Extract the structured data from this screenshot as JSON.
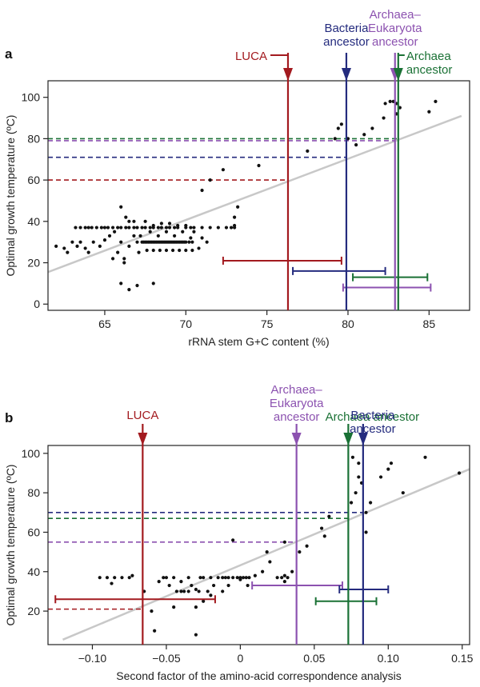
{
  "chart_data": [
    {
      "panel": "a",
      "type": "scatter",
      "xlabel": "rRNA stem G+C content (%)",
      "ylabel": "Optimal growth temperature (ºC)",
      "xlim": [
        61.5,
        87.5
      ],
      "ylim": [
        -3,
        108
      ],
      "xticks": [
        65,
        70,
        75,
        80,
        85
      ],
      "yticks": [
        0,
        20,
        40,
        60,
        80,
        100
      ],
      "regression": {
        "x1": 61.5,
        "y1": 15.5,
        "x2": 87.0,
        "y2": 91.0
      },
      "ancestors": [
        {
          "label": "LUCA",
          "color": "#a31a1f",
          "x": 76.3,
          "temp": 60,
          "ci": [
            72.3,
            79.6
          ],
          "ci_y": 21,
          "label_above": false
        },
        {
          "label": "Bacteria\nancestor",
          "color": "#242b7e",
          "x": 79.9,
          "temp": 71,
          "ci": [
            76.6,
            82.3
          ],
          "ci_y": 16,
          "label_above": true
        },
        {
          "label": "Archaea–\nEukaryota\nancestor",
          "color": "#8c52b0",
          "x": 82.9,
          "temp": 79,
          "ci": [
            79.7,
            85.1
          ],
          "ci_y": 8,
          "label_above": true
        },
        {
          "label": "Archaea\nancestor",
          "color": "#1a7135",
          "x": 83.1,
          "temp": 80,
          "ci": [
            80.3,
            84.9
          ],
          "ci_y": 13,
          "label_above": false
        }
      ],
      "points": [
        [
          62,
          28
        ],
        [
          62.5,
          27
        ],
        [
          62.7,
          25
        ],
        [
          63,
          30
        ],
        [
          63.2,
          37
        ],
        [
          63.5,
          37
        ],
        [
          63.8,
          37
        ],
        [
          64,
          37
        ],
        [
          64.2,
          37
        ],
        [
          64.5,
          37
        ],
        [
          64.8,
          37
        ],
        [
          65,
          37
        ],
        [
          65.2,
          37
        ],
        [
          65.5,
          37
        ],
        [
          65.8,
          37
        ],
        [
          66,
          37
        ],
        [
          66.3,
          37
        ],
        [
          66.5,
          37
        ],
        [
          66.8,
          37
        ],
        [
          67,
          37
        ],
        [
          67.3,
          37
        ],
        [
          67.5,
          37
        ],
        [
          67.8,
          37
        ],
        [
          68,
          37
        ],
        [
          68.3,
          37
        ],
        [
          68.5,
          37
        ],
        [
          68.8,
          37
        ],
        [
          69,
          37
        ],
        [
          69.3,
          37
        ],
        [
          69.5,
          37
        ],
        [
          70,
          37
        ],
        [
          70.3,
          37
        ],
        [
          70.5,
          37
        ],
        [
          71,
          37
        ],
        [
          71.5,
          37
        ],
        [
          72,
          37
        ],
        [
          72.5,
          37
        ],
        [
          73,
          37
        ],
        [
          63.3,
          28
        ],
        [
          63.5,
          30
        ],
        [
          63.8,
          27
        ],
        [
          64,
          25
        ],
        [
          64.3,
          30
        ],
        [
          64.7,
          28
        ],
        [
          65,
          31
        ],
        [
          65.3,
          33
        ],
        [
          65.6,
          35
        ],
        [
          65.8,
          25
        ],
        [
          66,
          30
        ],
        [
          66.2,
          22
        ],
        [
          66.5,
          28
        ],
        [
          66.8,
          33
        ],
        [
          67,
          30
        ],
        [
          67.1,
          25
        ],
        [
          67.2,
          33
        ],
        [
          67.3,
          30
        ],
        [
          67.4,
          30
        ],
        [
          67.5,
          30
        ],
        [
          67.6,
          30
        ],
        [
          67.7,
          30
        ],
        [
          67.8,
          30
        ],
        [
          67.9,
          30
        ],
        [
          68,
          30
        ],
        [
          68.1,
          30
        ],
        [
          68.2,
          30
        ],
        [
          68.3,
          30
        ],
        [
          68.4,
          30
        ],
        [
          68.5,
          30
        ],
        [
          68.6,
          30
        ],
        [
          68.7,
          30
        ],
        [
          68.8,
          30
        ],
        [
          68.9,
          30
        ],
        [
          69,
          30
        ],
        [
          69.1,
          30
        ],
        [
          69.2,
          30
        ],
        [
          69.3,
          30
        ],
        [
          69.4,
          30
        ],
        [
          69.5,
          30
        ],
        [
          69.6,
          30
        ],
        [
          69.7,
          30
        ],
        [
          69.8,
          30
        ],
        [
          69.9,
          30
        ],
        [
          70,
          30
        ],
        [
          70.2,
          30
        ],
        [
          70.4,
          30
        ],
        [
          67.6,
          26
        ],
        [
          68,
          26
        ],
        [
          68.4,
          26
        ],
        [
          68.8,
          26
        ],
        [
          69.2,
          26
        ],
        [
          69.6,
          26
        ],
        [
          70,
          26
        ],
        [
          70.4,
          26
        ],
        [
          67.8,
          35
        ],
        [
          68.3,
          33
        ],
        [
          68.8,
          35
        ],
        [
          69.3,
          33
        ],
        [
          69.8,
          35
        ],
        [
          70.3,
          32
        ],
        [
          66,
          47
        ],
        [
          66.3,
          42
        ],
        [
          66.5,
          40
        ],
        [
          66.8,
          40
        ],
        [
          67.5,
          40
        ],
        [
          68,
          38
        ],
        [
          68.5,
          39
        ],
        [
          69,
          39
        ],
        [
          69.5,
          38
        ],
        [
          70,
          38
        ],
        [
          70.5,
          35
        ],
        [
          71,
          32
        ],
        [
          71.3,
          30
        ],
        [
          70.8,
          27
        ],
        [
          66,
          10
        ],
        [
          66.5,
          7
        ],
        [
          67,
          9
        ],
        [
          68,
          10
        ],
        [
          66.2,
          20
        ],
        [
          65.5,
          22
        ],
        [
          71,
          55
        ],
        [
          71.5,
          60
        ],
        [
          72.3,
          65
        ],
        [
          73,
          42
        ],
        [
          73.2,
          47
        ],
        [
          73,
          38
        ],
        [
          72.8,
          37
        ],
        [
          74.5,
          67
        ],
        [
          77.5,
          74
        ],
        [
          79.2,
          80
        ],
        [
          79.4,
          85
        ],
        [
          79.6,
          87
        ],
        [
          80,
          80
        ],
        [
          80.5,
          77
        ],
        [
          81,
          82
        ],
        [
          81.5,
          85
        ],
        [
          82.2,
          90
        ],
        [
          82.6,
          98
        ],
        [
          82.8,
          98
        ],
        [
          83,
          97
        ],
        [
          83,
          92
        ],
        [
          83.2,
          95
        ],
        [
          82.3,
          97
        ],
        [
          85,
          93
        ],
        [
          85.4,
          98
        ]
      ]
    },
    {
      "panel": "b",
      "type": "scatter",
      "xlabel": "Second factor of the amino-acid correspondence analysis",
      "ylabel": "Optimal growth temperature (ºC)",
      "xlim": [
        -0.13,
        0.155
      ],
      "ylim": [
        3,
        104
      ],
      "xticks": [
        -0.1,
        -0.05,
        0,
        0.05,
        0.1,
        0.15
      ],
      "xtick_labels": [
        "−0.10",
        "−0.05",
        "0",
        "0.05",
        "0.10",
        "0.15"
      ],
      "yticks": [
        20,
        40,
        60,
        80,
        100
      ],
      "regression": {
        "x1": -0.12,
        "y1": 5.5,
        "x2": 0.155,
        "y2": 92.0
      },
      "ancestors": [
        {
          "label": "LUCA",
          "color": "#a31a1f",
          "x": -0.066,
          "temp": 21,
          "ci": [
            -0.125,
            -0.017
          ],
          "ci_y": 26,
          "label_above": false
        },
        {
          "label": "Archaea–\nEukaryota\nancestor",
          "color": "#8c52b0",
          "x": 0.038,
          "temp": 55,
          "ci": [
            0.008,
            0.069
          ],
          "ci_y": 33,
          "label_above": true
        },
        {
          "label": "Archaea ancestor",
          "color": "#1a7135",
          "x": 0.073,
          "temp": 67,
          "ci": [
            0.051,
            0.092
          ],
          "ci_y": 25,
          "label_above": true
        },
        {
          "label": "Bacteria\nancestor",
          "color": "#242b7e",
          "x": 0.083,
          "temp": 70,
          "ci": [
            0.067,
            0.1
          ],
          "ci_y": 31,
          "label_above": false
        }
      ],
      "points": [
        [
          -0.095,
          37
        ],
        [
          -0.09,
          37
        ],
        [
          -0.087,
          34
        ],
        [
          -0.085,
          37
        ],
        [
          -0.08,
          37
        ],
        [
          -0.075,
          37
        ],
        [
          -0.073,
          38
        ],
        [
          -0.065,
          30
        ],
        [
          -0.055,
          35
        ],
        [
          -0.052,
          37
        ],
        [
          -0.05,
          37
        ],
        [
          -0.048,
          33
        ],
        [
          -0.045,
          37
        ],
        [
          -0.043,
          30
        ],
        [
          -0.04,
          30
        ],
        [
          -0.038,
          30
        ],
        [
          -0.035,
          30
        ],
        [
          -0.033,
          33
        ],
        [
          -0.03,
          31
        ],
        [
          -0.028,
          30
        ],
        [
          -0.027,
          37
        ],
        [
          -0.025,
          37
        ],
        [
          -0.022,
          30
        ],
        [
          -0.02,
          37
        ],
        [
          -0.018,
          33
        ],
        [
          -0.015,
          37
        ],
        [
          -0.012,
          37
        ],
        [
          -0.01,
          37
        ],
        [
          -0.008,
          37
        ],
        [
          -0.005,
          37
        ],
        [
          -0.002,
          37
        ],
        [
          0,
          37
        ],
        [
          0.002,
          37
        ],
        [
          0.004,
          37
        ],
        [
          0.006,
          37
        ],
        [
          -0.04,
          35
        ],
        [
          -0.035,
          37
        ],
        [
          -0.025,
          25
        ],
        [
          -0.02,
          28
        ],
        [
          -0.03,
          22
        ],
        [
          -0.06,
          20
        ],
        [
          -0.058,
          10
        ],
        [
          -0.03,
          8
        ],
        [
          -0.045,
          22
        ],
        [
          -0.012,
          30
        ],
        [
          -0.008,
          33
        ],
        [
          0,
          36
        ],
        [
          0.005,
          33
        ],
        [
          0.01,
          38
        ],
        [
          0.015,
          40
        ],
        [
          0.02,
          45
        ],
        [
          0.025,
          37
        ],
        [
          0.028,
          37
        ],
        [
          0.03,
          38
        ],
        [
          0.032,
          37
        ],
        [
          0.03,
          35
        ],
        [
          0.035,
          40
        ],
        [
          0.04,
          50
        ],
        [
          0.045,
          53
        ],
        [
          0.055,
          62
        ],
        [
          0.057,
          58
        ],
        [
          0.06,
          68
        ],
        [
          0.075,
          75
        ],
        [
          0.078,
          80
        ],
        [
          0.08,
          88
        ],
        [
          0.082,
          85
        ],
        [
          0.085,
          70
        ],
        [
          0.088,
          75
        ],
        [
          0.076,
          98
        ],
        [
          0.08,
          95
        ],
        [
          0.095,
          88
        ],
        [
          0.1,
          92
        ],
        [
          0.102,
          95
        ],
        [
          0.11,
          80
        ],
        [
          0.125,
          98
        ],
        [
          0.148,
          90
        ],
        [
          -0.005,
          56
        ],
        [
          0.03,
          55
        ],
        [
          0.018,
          50
        ],
        [
          0.085,
          60
        ]
      ]
    }
  ]
}
